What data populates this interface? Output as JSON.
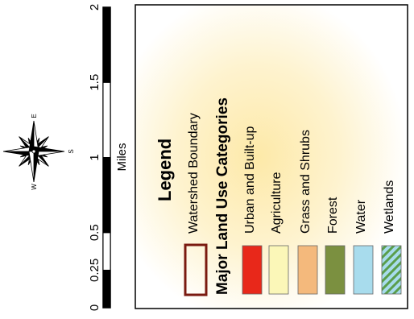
{
  "scale_bar": {
    "unit": "Miles",
    "ticks": [
      "0",
      "0.25",
      "0.5",
      "1",
      "1.5",
      "2"
    ],
    "tick_values": [
      0,
      0.25,
      0.5,
      1,
      1.5,
      2
    ]
  },
  "compass": {
    "letters": {
      "north": "",
      "east": "E",
      "south": "S",
      "west": "W"
    }
  },
  "legend": {
    "title": "Legend",
    "boundary_label": "Watershed Boundary",
    "boundary_color": "#7a1a10",
    "categories_heading": "Major Land Use Categories",
    "items": [
      {
        "label": "Urban and Built-up",
        "color": "#e8281a",
        "pattern": "solid"
      },
      {
        "label": "Agriculture",
        "color": "#fbf7b8",
        "pattern": "solid"
      },
      {
        "label": "Grass and Shrubs",
        "color": "#f4b97c",
        "pattern": "solid"
      },
      {
        "label": "Forest",
        "color": "#7b9040",
        "pattern": "solid"
      },
      {
        "label": "Water",
        "color": "#a8dced",
        "pattern": "solid"
      },
      {
        "label": "Wetlands",
        "color": "#a8dced",
        "pattern": "hatch",
        "hatch_color": "#5a9e4c"
      }
    ]
  }
}
